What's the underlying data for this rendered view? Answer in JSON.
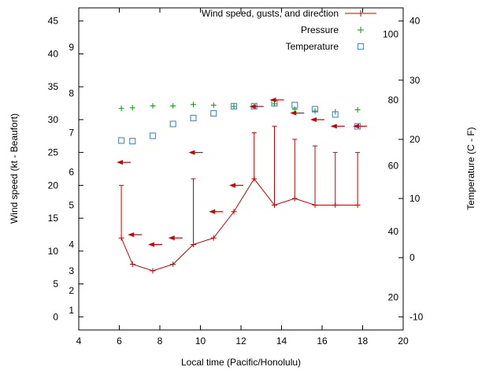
{
  "page": {
    "background": "#ffffff",
    "axis_color": "#000000"
  },
  "chart_data": {
    "type": "line",
    "title": "",
    "xlabel": "Local time (Pacific/Honolulu)",
    "ylabel_left": "Wind speed (kt - Beaufort)",
    "ylabel_right": "Temperature (C - F)",
    "x_range": [
      4,
      20
    ],
    "x_ticks": [
      4,
      6,
      8,
      10,
      12,
      14,
      16,
      18,
      20
    ],
    "y_left_range_kt": [
      0,
      45
    ],
    "y_left_ticks_kt": [
      0,
      5,
      10,
      15,
      20,
      25,
      30,
      35,
      40,
      45
    ],
    "beaufort_scale": [
      {
        "label": "1",
        "kt": 1
      },
      {
        "label": "2",
        "kt": 4
      },
      {
        "label": "3",
        "kt": 7
      },
      {
        "label": "4",
        "kt": 11
      },
      {
        "label": "5",
        "kt": 17
      },
      {
        "label": "6",
        "kt": 22
      },
      {
        "label": "7",
        "kt": 28
      },
      {
        "label": "8",
        "kt": 34
      },
      {
        "label": "9",
        "kt": 41
      }
    ],
    "y_right_range_c": [
      -10,
      40
    ],
    "y_right_ticks_c": [
      -10,
      0,
      10,
      20,
      30,
      40
    ],
    "fahrenheit_scale": [
      {
        "label": "20",
        "c": -6.67
      },
      {
        "label": "40",
        "c": 4.44
      },
      {
        "label": "60",
        "c": 15.56
      },
      {
        "label": "80",
        "c": 26.67
      },
      {
        "label": "100",
        "c": 37.78
      }
    ],
    "legend": [
      {
        "label": "Wind speed, gusts, and direction",
        "series": "wind",
        "marker": "line-plus",
        "color": "#cc0000"
      },
      {
        "label": "Pressure",
        "series": "pressure",
        "marker": "plus",
        "color": "#00a000"
      },
      {
        "label": "Temperature",
        "series": "temperature",
        "marker": "square-open",
        "color": "#4f94cd"
      }
    ],
    "series": {
      "wind": {
        "name": "Wind speed, gusts, and direction",
        "color": "#cc0000",
        "style": "linespoints-with-gust-bars",
        "arrow_direction": "left",
        "points": [
          {
            "t": 6.1,
            "kt": 12,
            "gust": 20,
            "arrow_kt": 23.5
          },
          {
            "t": 6.65,
            "kt": 8,
            "gust": null,
            "arrow_kt": 12.5
          },
          {
            "t": 7.65,
            "kt": 7,
            "gust": null,
            "arrow_kt": 11
          },
          {
            "t": 8.65,
            "kt": 8,
            "gust": null,
            "arrow_kt": 12
          },
          {
            "t": 9.65,
            "kt": 11,
            "gust": 21,
            "arrow_kt": 25
          },
          {
            "t": 10.65,
            "kt": 12,
            "gust": null,
            "arrow_kt": 16
          },
          {
            "t": 11.65,
            "kt": 16,
            "gust": null,
            "arrow_kt": 20
          },
          {
            "t": 12.65,
            "kt": 21,
            "gust": 28,
            "arrow_kt": 32
          },
          {
            "t": 13.65,
            "kt": 17,
            "gust": 29,
            "arrow_kt": 33
          },
          {
            "t": 14.65,
            "kt": 18,
            "gust": 27,
            "arrow_kt": 31
          },
          {
            "t": 15.65,
            "kt": 17,
            "gust": 26,
            "arrow_kt": 30
          },
          {
            "t": 16.65,
            "kt": 17,
            "gust": 25,
            "arrow_kt": 29
          },
          {
            "t": 17.75,
            "kt": 17,
            "gust": 25,
            "arrow_kt": 29
          }
        ]
      },
      "pressure": {
        "name": "Pressure",
        "color": "#00a000",
        "marker": "plus",
        "points_kt_scale": [
          {
            "t": 6.1,
            "kt": 31.7
          },
          {
            "t": 6.65,
            "kt": 31.8
          },
          {
            "t": 7.65,
            "kt": 32.1
          },
          {
            "t": 8.65,
            "kt": 32.1
          },
          {
            "t": 9.65,
            "kt": 32.3
          },
          {
            "t": 10.65,
            "kt": 32.2
          },
          {
            "t": 11.65,
            "kt": 32.0
          },
          {
            "t": 12.65,
            "kt": 32.0
          },
          {
            "t": 13.65,
            "kt": 32.4
          },
          {
            "t": 14.65,
            "kt": 31.6
          },
          {
            "t": 15.65,
            "kt": 31.3
          },
          {
            "t": 16.65,
            "kt": 31.2
          },
          {
            "t": 17.75,
            "kt": 31.5
          }
        ]
      },
      "temperature": {
        "name": "Temperature",
        "color": "#4f94cd",
        "marker": "open-square",
        "points": [
          {
            "t": 6.1,
            "c": 19.8
          },
          {
            "t": 6.65,
            "c": 19.7
          },
          {
            "t": 7.65,
            "c": 20.6
          },
          {
            "t": 8.65,
            "c": 22.6
          },
          {
            "t": 9.65,
            "c": 23.6
          },
          {
            "t": 10.65,
            "c": 24.4
          },
          {
            "t": 11.65,
            "c": 25.6
          },
          {
            "t": 12.65,
            "c": 25.6
          },
          {
            "t": 13.65,
            "c": 26.1
          },
          {
            "t": 14.65,
            "c": 25.8
          },
          {
            "t": 15.65,
            "c": 25.1
          },
          {
            "t": 16.65,
            "c": 24.2
          },
          {
            "t": 17.75,
            "c": 22.2
          }
        ]
      }
    }
  }
}
